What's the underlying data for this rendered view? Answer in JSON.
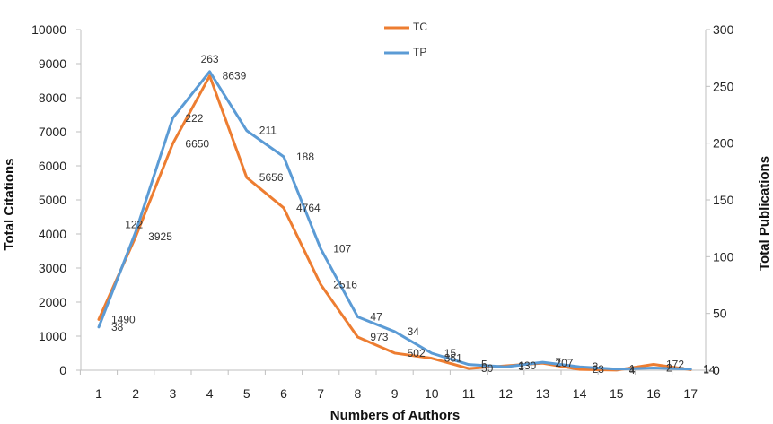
{
  "chart_data": {
    "type": "line",
    "title": "",
    "xlabel": "Numbers of Authors",
    "ylabel_left": "Total Citations",
    "ylabel_right": "Total Publications",
    "categories": [
      "1",
      "2",
      "3",
      "4",
      "5",
      "6",
      "7",
      "8",
      "9",
      "10",
      "11",
      "12",
      "13",
      "14",
      "15",
      "16",
      "17"
    ],
    "ylim_left": [
      0,
      10000
    ],
    "yticks_left": [
      0,
      1000,
      2000,
      3000,
      4000,
      5000,
      6000,
      7000,
      8000,
      9000,
      10000
    ],
    "ylim_right": [
      0,
      300
    ],
    "yticks_right": [
      0,
      50,
      100,
      150,
      200,
      250,
      300
    ],
    "grid": false,
    "legend_position": "top-center",
    "series": [
      {
        "name": "TC",
        "axis": "left",
        "color": "#ED7D31",
        "values": [
          1490,
          3925,
          6650,
          8639,
          5656,
          4764,
          2516,
          973,
          502,
          351,
          50,
          130,
          207,
          23,
          4,
          172,
          14
        ],
        "labels": [
          "1490",
          "3925",
          "6650",
          "8639",
          "5656",
          "4764",
          "2516",
          "973",
          "502",
          "351",
          "50",
          "130",
          "207",
          "23",
          "4",
          "172",
          "14"
        ]
      },
      {
        "name": "TP",
        "axis": "right",
        "color": "#5B9BD5",
        "values": [
          38,
          122,
          222,
          263,
          211,
          188,
          107,
          47,
          34,
          15,
          5,
          3,
          7,
          3,
          1,
          2,
          1
        ],
        "labels": [
          "38",
          "122",
          "222",
          "263",
          "211",
          "188",
          "107",
          "47",
          "34",
          "15",
          "5",
          "3",
          "7",
          "3",
          "1",
          "2",
          "1"
        ]
      }
    ]
  }
}
